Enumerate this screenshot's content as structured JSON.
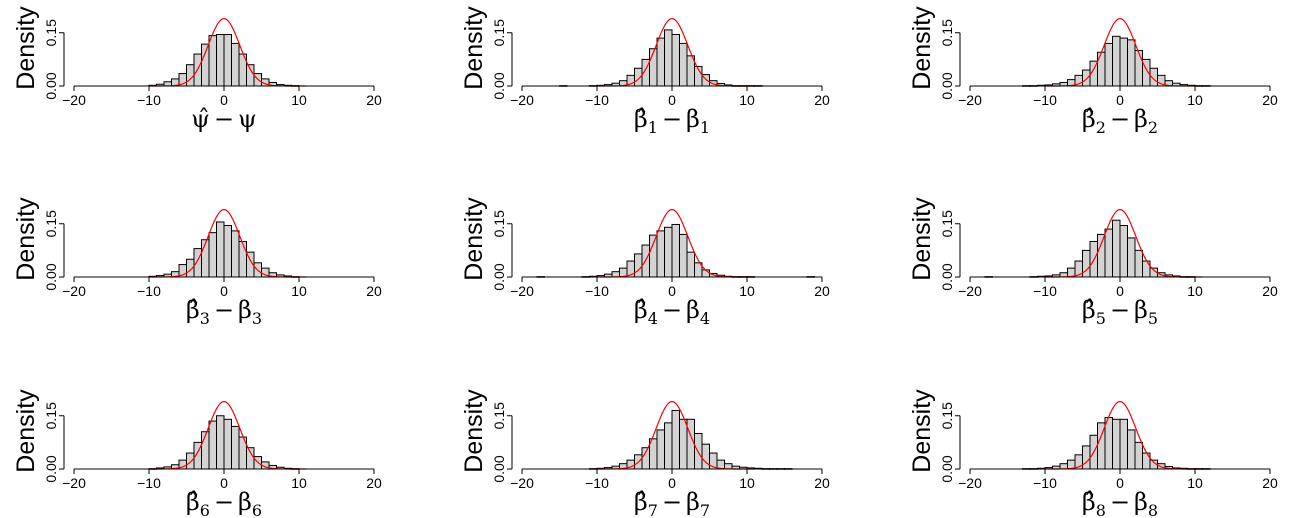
{
  "chart_data": [
    {
      "type": "bar",
      "ylabel": "Density",
      "xlabel": {
        "hat": "ψ̂",
        "minus": "−",
        "base": "ψ",
        "sub": ""
      },
      "xlim": [
        -20,
        20
      ],
      "ylim": [
        0,
        0.2
      ],
      "x_ticks": [
        -20,
        -10,
        0,
        10,
        20
      ],
      "y_ticks": [
        0.0,
        0.15
      ],
      "bin_width": 1,
      "bins_start": -10,
      "densities": [
        0.002,
        0.005,
        0.012,
        0.02,
        0.035,
        0.06,
        0.09,
        0.118,
        0.142,
        0.145,
        0.145,
        0.12,
        0.09,
        0.06,
        0.035,
        0.02,
        0.01,
        0.004,
        0.002,
        0.001
      ],
      "normal_curve": {
        "mean": 0,
        "sd": 2.1,
        "color": "#ff0000"
      }
    },
    {
      "type": "bar",
      "ylabel": "Density",
      "xlabel": {
        "hat": "β̂",
        "minus": "−",
        "base": "β",
        "sub": "1"
      },
      "xlim": [
        -20,
        20
      ],
      "ylim": [
        0,
        0.2
      ],
      "x_ticks": [
        -20,
        -10,
        0,
        10,
        20
      ],
      "y_ticks": [
        0.0,
        0.15
      ],
      "bin_width": 1,
      "bins_start": -15,
      "densities": [
        0.001,
        0,
        0,
        0,
        0.001,
        0.002,
        0.004,
        0.008,
        0.015,
        0.03,
        0.05,
        0.075,
        0.105,
        0.135,
        0.158,
        0.145,
        0.12,
        0.085,
        0.055,
        0.032,
        0.015,
        0.007,
        0.003,
        0.001,
        0.001,
        0.001,
        0.001
      ],
      "normal_curve": {
        "mean": 0,
        "sd": 2.1,
        "color": "#ff0000"
      }
    },
    {
      "type": "bar",
      "ylabel": "Density",
      "xlabel": {
        "hat": "β̂",
        "minus": "−",
        "base": "β",
        "sub": "2"
      },
      "xlim": [
        -20,
        20
      ],
      "ylim": [
        0,
        0.2
      ],
      "x_ticks": [
        -20,
        -10,
        0,
        10,
        20
      ],
      "y_ticks": [
        0.0,
        0.15
      ],
      "bin_width": 1,
      "bins_start": -13,
      "densities": [
        0.001,
        0.001,
        0.002,
        0.003,
        0.006,
        0.01,
        0.018,
        0.03,
        0.045,
        0.07,
        0.095,
        0.12,
        0.14,
        0.135,
        0.13,
        0.1,
        0.075,
        0.05,
        0.03,
        0.015,
        0.008,
        0.004,
        0.002,
        0.001,
        0.001
      ],
      "normal_curve": {
        "mean": 0,
        "sd": 2.1,
        "color": "#ff0000"
      }
    },
    {
      "type": "bar",
      "ylabel": "Density",
      "xlabel": {
        "hat": "β̂",
        "minus": "−",
        "base": "β",
        "sub": "3"
      },
      "xlim": [
        -20,
        20
      ],
      "ylim": [
        0,
        0.2
      ],
      "x_ticks": [
        -20,
        -10,
        0,
        10,
        20
      ],
      "y_ticks": [
        0.0,
        0.15
      ],
      "bin_width": 1,
      "bins_start": -10,
      "densities": [
        0.002,
        0.004,
        0.008,
        0.015,
        0.035,
        0.05,
        0.08,
        0.105,
        0.125,
        0.155,
        0.145,
        0.13,
        0.1,
        0.07,
        0.04,
        0.025,
        0.012,
        0.006,
        0.003,
        0.001
      ],
      "normal_curve": {
        "mean": 0,
        "sd": 2.1,
        "color": "#ff0000"
      }
    },
    {
      "type": "bar",
      "ylabel": "Density",
      "xlabel": {
        "hat": "β̂",
        "minus": "−",
        "base": "β",
        "sub": "4"
      },
      "xlim": [
        -20,
        20
      ],
      "ylim": [
        0,
        0.2
      ],
      "x_ticks": [
        -20,
        -10,
        0,
        10,
        20
      ],
      "y_ticks": [
        0.0,
        0.15
      ],
      "bin_width": 1,
      "bins_start": -18,
      "densities": [
        0.001,
        0,
        0,
        0,
        0,
        0,
        0.001,
        0.002,
        0.004,
        0.008,
        0.015,
        0.025,
        0.045,
        0.065,
        0.09,
        0.118,
        0.13,
        0.14,
        0.148,
        0.12,
        0.07,
        0.04,
        0.02,
        0.01,
        0.005,
        0.002,
        0.001,
        0.001,
        0.001,
        0,
        0,
        0,
        0,
        0,
        0,
        0,
        0.001
      ],
      "normal_curve": {
        "mean": 0,
        "sd": 2.1,
        "color": "#ff0000"
      }
    },
    {
      "type": "bar",
      "ylabel": "Density",
      "xlabel": {
        "hat": "β̂",
        "minus": "−",
        "base": "β",
        "sub": "5"
      },
      "xlim": [
        -20,
        20
      ],
      "ylim": [
        0,
        0.2
      ],
      "x_ticks": [
        -20,
        -10,
        0,
        10,
        20
      ],
      "y_ticks": [
        0.0,
        0.15
      ],
      "bin_width": 1,
      "bins_start": -18,
      "densities": [
        0.001,
        0,
        0,
        0,
        0,
        0,
        0.001,
        0.002,
        0.003,
        0.006,
        0.012,
        0.025,
        0.045,
        0.075,
        0.1,
        0.12,
        0.135,
        0.16,
        0.145,
        0.11,
        0.075,
        0.045,
        0.025,
        0.012,
        0.006,
        0.003,
        0.001,
        0.001
      ],
      "normal_curve": {
        "mean": 0,
        "sd": 2.1,
        "color": "#ff0000"
      }
    },
    {
      "type": "bar",
      "ylabel": "Density",
      "xlabel": {
        "hat": "β̂",
        "minus": "−",
        "base": "β",
        "sub": "6"
      },
      "xlim": [
        -20,
        20
      ],
      "ylim": [
        0,
        0.2
      ],
      "x_ticks": [
        -20,
        -10,
        0,
        10,
        20
      ],
      "y_ticks": [
        0.0,
        0.15
      ],
      "bin_width": 1,
      "bins_start": -10,
      "densities": [
        0.001,
        0.003,
        0.006,
        0.012,
        0.025,
        0.045,
        0.075,
        0.105,
        0.135,
        0.15,
        0.14,
        0.12,
        0.09,
        0.06,
        0.035,
        0.02,
        0.01,
        0.005,
        0.002,
        0.001
      ],
      "normal_curve": {
        "mean": 0,
        "sd": 2.1,
        "color": "#ff0000"
      }
    },
    {
      "type": "bar",
      "ylabel": "Density",
      "xlabel": {
        "hat": "β̂",
        "minus": "−",
        "base": "β",
        "sub": "7"
      },
      "xlim": [
        -20,
        20
      ],
      "ylim": [
        0,
        0.2
      ],
      "x_ticks": [
        -20,
        -10,
        0,
        10,
        20
      ],
      "y_ticks": [
        0.0,
        0.15
      ],
      "bin_width": 1,
      "bins_start": -11,
      "densities": [
        0.001,
        0.002,
        0.004,
        0.008,
        0.015,
        0.025,
        0.04,
        0.06,
        0.085,
        0.11,
        0.13,
        0.165,
        0.14,
        0.14,
        0.1,
        0.07,
        0.045,
        0.025,
        0.015,
        0.008,
        0.005,
        0.003,
        0.002,
        0.001,
        0.001,
        0.001,
        0.001
      ],
      "normal_curve": {
        "mean": 0,
        "sd": 2.1,
        "color": "#ff0000"
      }
    },
    {
      "type": "bar",
      "ylabel": "Density",
      "xlabel": {
        "hat": "β̂",
        "minus": "−",
        "base": "β",
        "sub": "8"
      },
      "xlim": [
        -20,
        20
      ],
      "ylim": [
        0,
        0.2
      ],
      "x_ticks": [
        -20,
        -10,
        0,
        10,
        20
      ],
      "y_ticks": [
        0.0,
        0.15
      ],
      "bin_width": 1,
      "bins_start": -13,
      "densities": [
        0.001,
        0.001,
        0.002,
        0.004,
        0.008,
        0.015,
        0.025,
        0.04,
        0.065,
        0.095,
        0.13,
        0.145,
        0.14,
        0.14,
        0.11,
        0.075,
        0.045,
        0.025,
        0.015,
        0.007,
        0.003,
        0.002,
        0.001,
        0.001,
        0.001
      ],
      "normal_curve": {
        "mean": 0,
        "sd": 2.1,
        "color": "#ff0000"
      }
    }
  ]
}
